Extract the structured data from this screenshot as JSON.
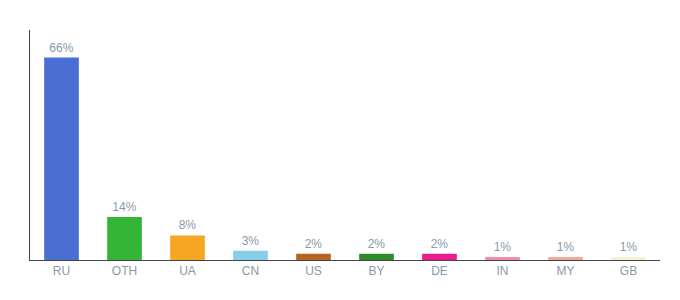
{
  "chart_data": {
    "type": "bar",
    "categories": [
      "RU",
      "OTH",
      "UA",
      "CN",
      "US",
      "BY",
      "DE",
      "IN",
      "MY",
      "GB"
    ],
    "values": [
      66,
      14,
      8,
      3,
      2,
      2,
      2,
      1,
      1,
      1
    ],
    "value_labels": [
      "66%",
      "14%",
      "8%",
      "3%",
      "2%",
      "2%",
      "2%",
      "1%",
      "1%",
      "1%"
    ],
    "colors": [
      "#4a6fd4",
      "#33b535",
      "#f5a623",
      "#87ceeb",
      "#b5651d",
      "#2e8b2e",
      "#e91e8c",
      "#f48cb0",
      "#f4a898",
      "#f5f0d8"
    ],
    "ylim": [
      0,
      75
    ],
    "grid": false,
    "data_labels": true,
    "tick_labels": "x"
  }
}
